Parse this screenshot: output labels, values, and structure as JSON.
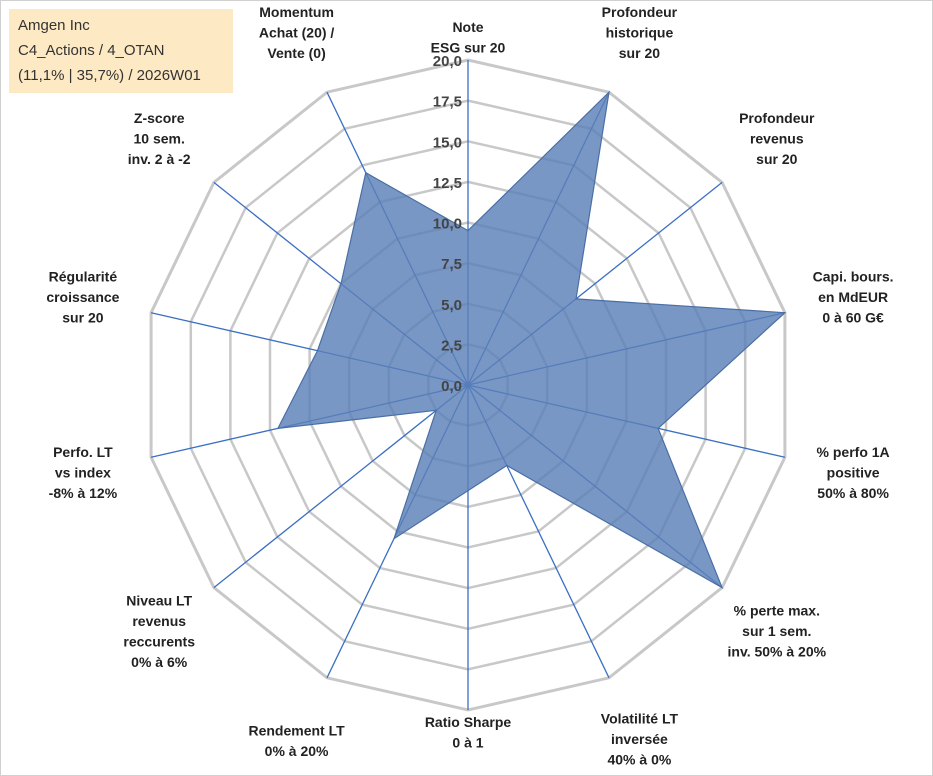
{
  "info": {
    "line1": "Amgen Inc",
    "line2": "C4_Actions / 4_OTAN",
    "line3": "(11,1% | 35,7%) / 2026W01"
  },
  "colors": {
    "grid": "#c8c8c8",
    "spoke": "#3a6fc4",
    "fill": "#5b80b8",
    "stroke": "#4a6fa5"
  },
  "chart_data": {
    "type": "radar",
    "title": "",
    "rmin": 0,
    "rmax": 20,
    "tick_step": 2.5,
    "ticks": [
      "0,0",
      "2,5",
      "5,0",
      "7,5",
      "10,0",
      "12,5",
      "15,0",
      "17,5",
      "20,0"
    ],
    "axes": [
      {
        "label": [
          "Note",
          "ESG sur 20"
        ],
        "value": 9.5
      },
      {
        "label": [
          "Profondeur",
          "historique",
          "sur 20"
        ],
        "value": 20
      },
      {
        "label": [
          "Profondeur",
          "revenus",
          "sur 20"
        ],
        "value": 8.5
      },
      {
        "label": [
          "Capi. bours.",
          "en MdEUR",
          "0 à 60 G€"
        ],
        "value": 20
      },
      {
        "label": [
          "% perfo 1A",
          "positive",
          "50% à 80%"
        ],
        "value": 12
      },
      {
        "label": [
          "% perte max.",
          "sur 1 sem.",
          "inv. 50% à 20%"
        ],
        "value": 20
      },
      {
        "label": [
          "Volatilité LT",
          "inversée",
          "40% à 0%"
        ],
        "value": 5.5
      },
      {
        "label": [
          "Ratio Sharpe",
          "0 à 1"
        ],
        "value": 6.5
      },
      {
        "label": [
          "Rendement LT",
          "0% à 20%"
        ],
        "value": 10.5
      },
      {
        "label": [
          "Niveau LT",
          "revenus",
          "reccurents",
          "0% à 6%"
        ],
        "value": 2.5
      },
      {
        "label": [
          "Perfo. LT",
          "vs index",
          "-8% à 12%"
        ],
        "value": 12
      },
      {
        "label": [
          "Régularité",
          "croissance",
          "sur 20"
        ],
        "value": 9.5
      },
      {
        "label": [
          "Z-score",
          "10 sem.",
          "inv. 2 à -2"
        ],
        "value": 10
      },
      {
        "label": [
          "Momentum",
          "Achat (20) /",
          "Vente (0)"
        ],
        "value": 14.5
      }
    ]
  }
}
